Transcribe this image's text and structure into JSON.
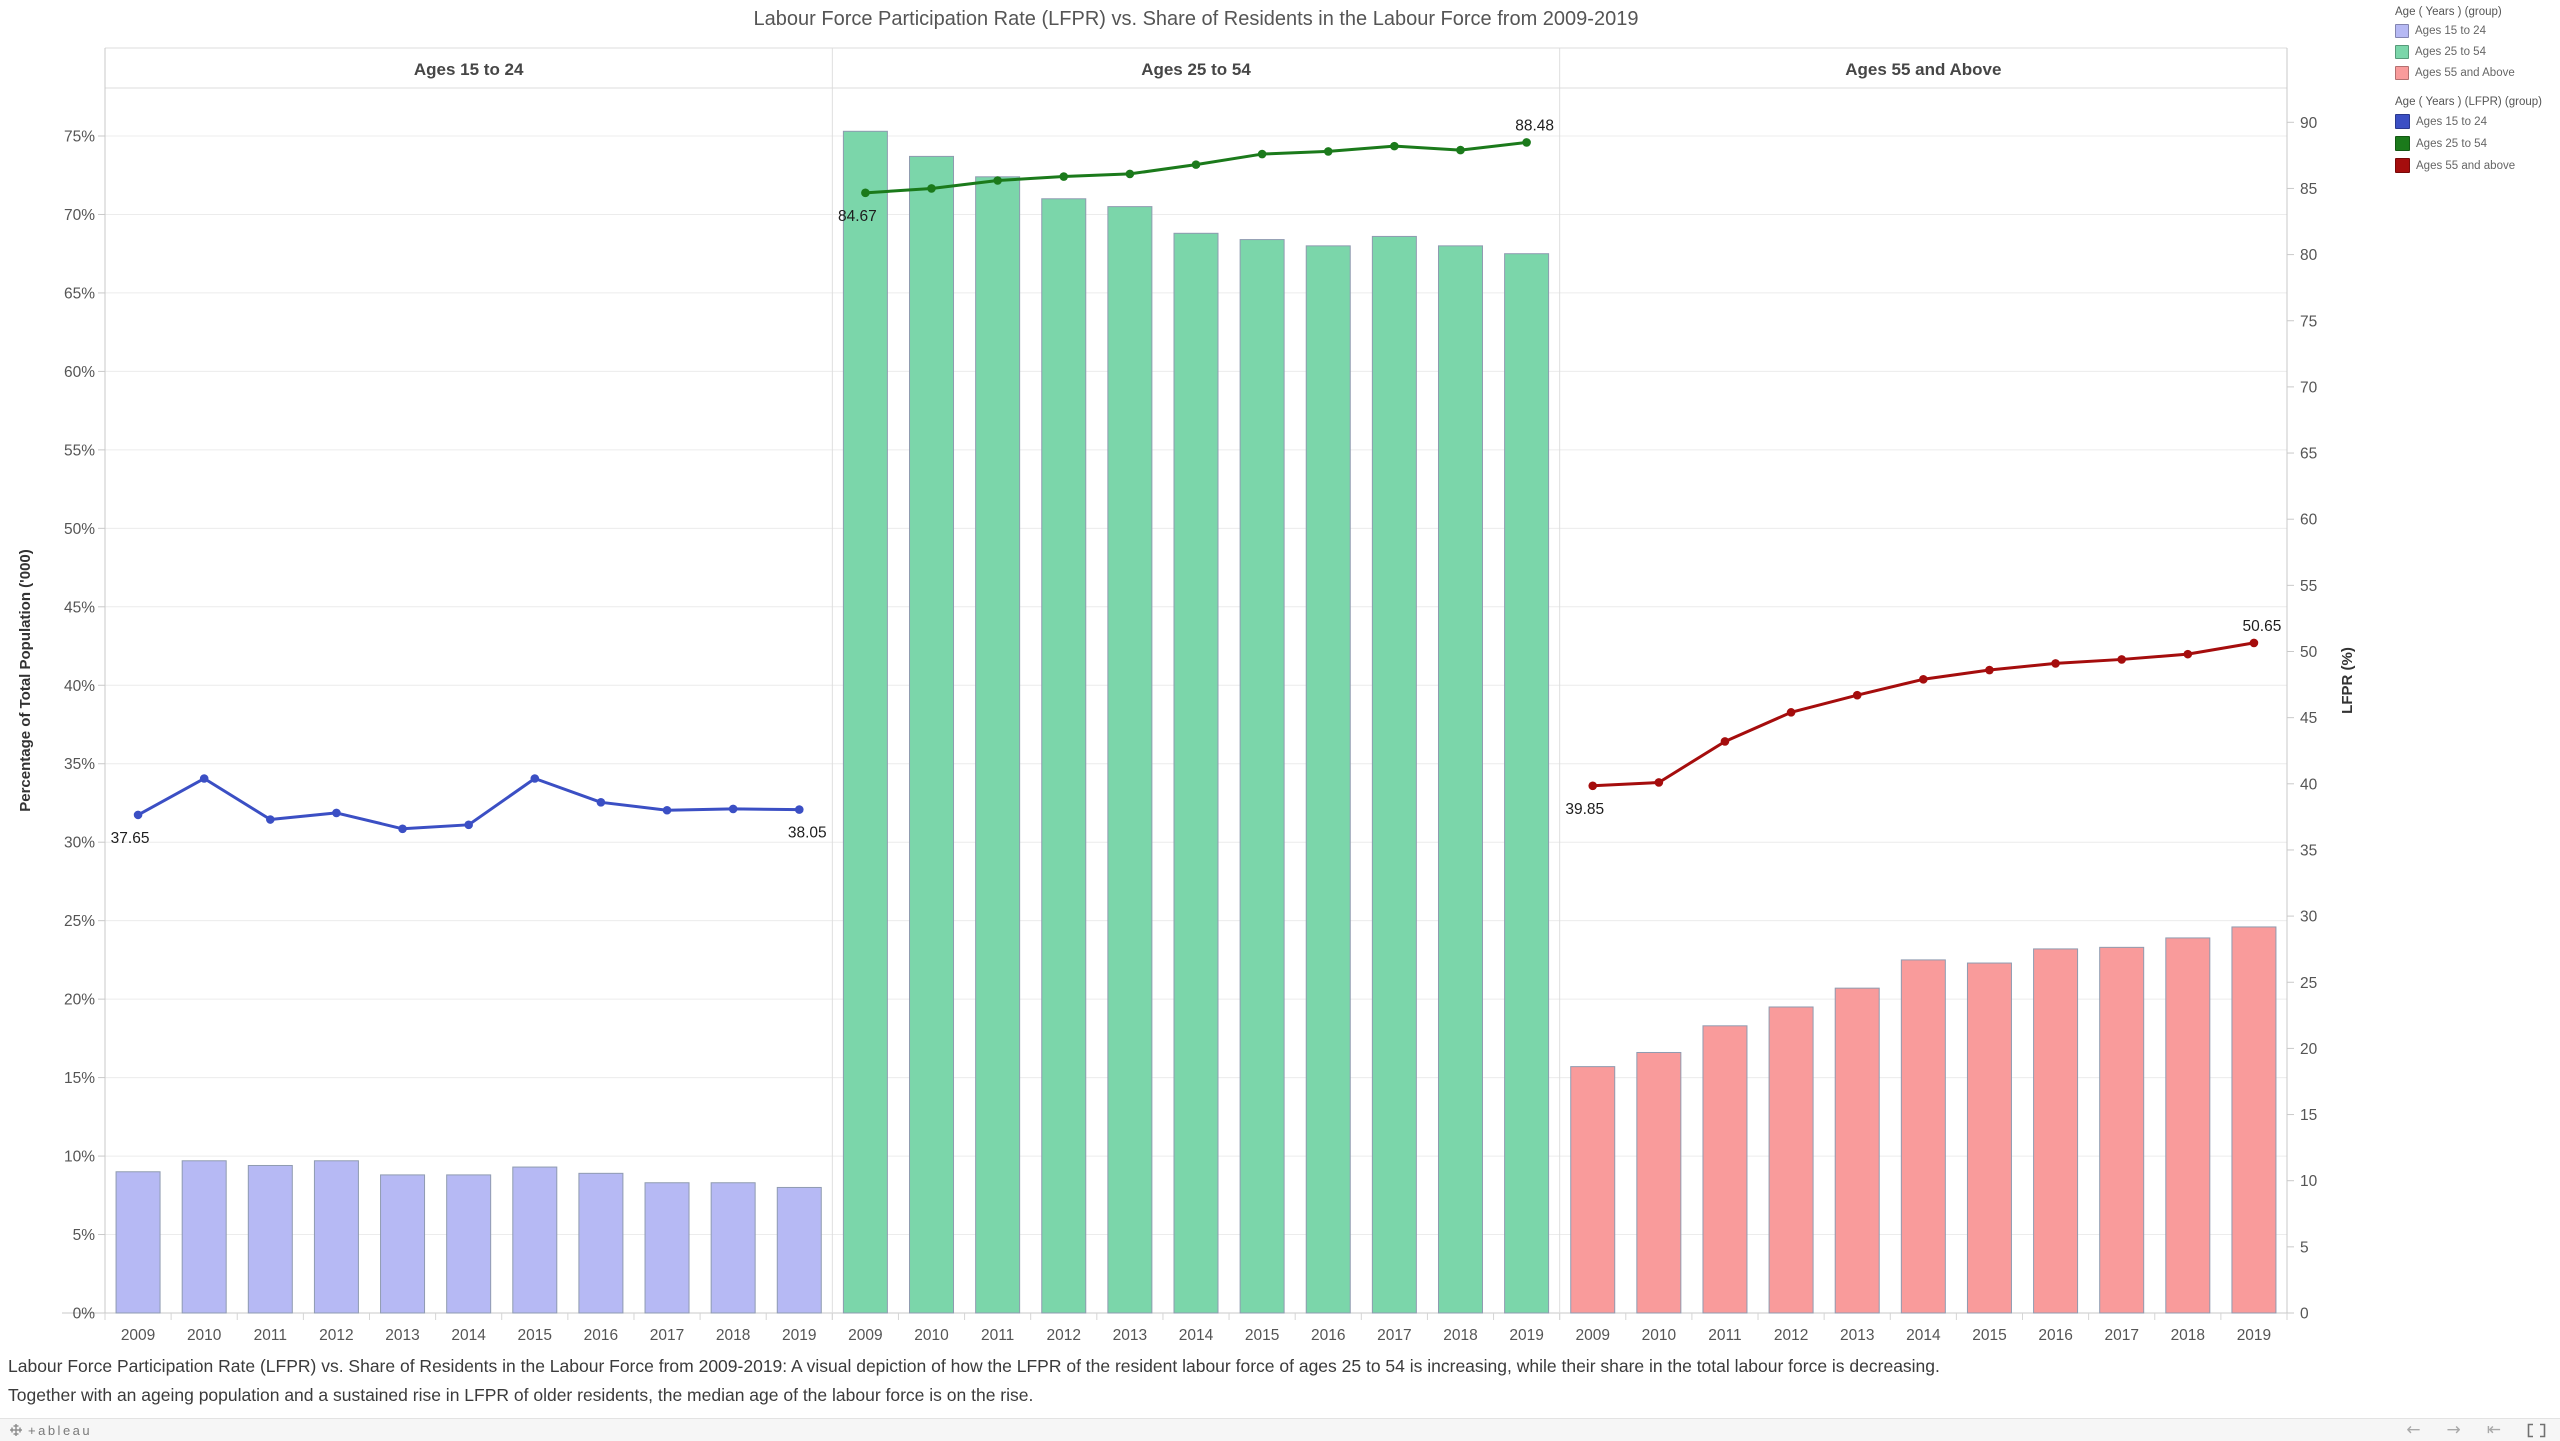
{
  "title": "Labour Force Participation Rate (LFPR) vs. Share of Residents in the Labour Force from 2009-2019",
  "legend": {
    "groups": [
      {
        "title": "Age ( Years ) (group)",
        "items": [
          {
            "label": "Ages 15 to 24",
            "color": "#b6b9f4"
          },
          {
            "label": "Ages 25 to 54",
            "color": "#7bd6aa"
          },
          {
            "label": "Ages 55 and Above",
            "color": "#f99b9b"
          }
        ]
      },
      {
        "title": "Age ( Years ) (LFPR) (group)",
        "items": [
          {
            "label": "Ages 15 to 24",
            "color": "#3b4fc4"
          },
          {
            "label": "Ages 25 to 54",
            "color": "#1b7a1b"
          },
          {
            "label": "Ages 55 and above",
            "color": "#a50d0d"
          }
        ]
      }
    ]
  },
  "chart_data": {
    "type": "bar+line dual-axis, small multiples by age group",
    "x": [
      2009,
      2010,
      2011,
      2012,
      2013,
      2014,
      2015,
      2016,
      2017,
      2018,
      2019
    ],
    "left_axis": {
      "label": "Percentage of Total Population ('000)",
      "tick_labels": [
        "0%",
        "5%",
        "10%",
        "15%",
        "20%",
        "25%",
        "30%",
        "35%",
        "40%",
        "45%",
        "50%",
        "55%",
        "60%",
        "65%",
        "70%",
        "75%"
      ],
      "tick_values": [
        0,
        5,
        10,
        15,
        20,
        25,
        30,
        35,
        40,
        45,
        50,
        55,
        60,
        65,
        70,
        75
      ],
      "range": [
        0,
        78.5
      ],
      "grid": true
    },
    "right_axis": {
      "label": "LFPR (%)",
      "tick_values": [
        0,
        5,
        10,
        15,
        20,
        25,
        30,
        35,
        40,
        45,
        50,
        55,
        60,
        65,
        70,
        75,
        80,
        85,
        90
      ],
      "range": [
        0,
        93
      ]
    },
    "panels": [
      {
        "header": "Ages 15 to 24",
        "bars": {
          "name": "Share of residents in labour force",
          "axis": "left",
          "color": "#b6b9f4",
          "values": [
            9.0,
            9.7,
            9.4,
            9.7,
            8.8,
            8.8,
            9.3,
            8.9,
            8.3,
            8.3,
            8.0
          ]
        },
        "line": {
          "name": "LFPR",
          "axis": "right",
          "color": "#3b4fc4",
          "values": [
            37.65,
            40.4,
            37.3,
            37.8,
            36.6,
            36.9,
            40.4,
            38.6,
            38.0,
            38.1,
            38.05
          ],
          "first_label": "37.65",
          "last_label": "38.05",
          "last_label_pos": "below"
        }
      },
      {
        "header": "Ages 25 to 54",
        "bars": {
          "name": "Share of residents in labour force",
          "axis": "left",
          "color": "#7bd6aa",
          "values": [
            75.3,
            73.7,
            72.4,
            71.0,
            70.5,
            68.8,
            68.4,
            68.0,
            68.6,
            68.0,
            67.5
          ]
        },
        "line": {
          "name": "LFPR",
          "axis": "right",
          "color": "#1b7a1b",
          "values": [
            84.67,
            85.0,
            85.6,
            85.9,
            86.1,
            86.8,
            87.6,
            87.8,
            88.2,
            87.9,
            88.48
          ],
          "first_label": "84.67",
          "last_label": "88.48",
          "last_label_pos": "above"
        }
      },
      {
        "header": "Ages 55 and Above",
        "bars": {
          "name": "Share of residents in labour force",
          "axis": "left",
          "color": "#f99b9b",
          "values": [
            15.7,
            16.6,
            18.3,
            19.5,
            20.7,
            22.5,
            22.3,
            23.2,
            23.3,
            23.9,
            24.6
          ]
        },
        "line": {
          "name": "LFPR",
          "axis": "right",
          "color": "#a50d0d",
          "values": [
            39.85,
            40.1,
            43.2,
            45.4,
            46.7,
            47.9,
            48.6,
            49.1,
            49.4,
            49.8,
            50.65
          ],
          "first_label": "39.85",
          "last_label": "50.65",
          "last_label_pos": "above"
        }
      }
    ]
  },
  "caption": {
    "line1": "Labour Force Participation Rate (LFPR) vs. Share of Residents in the Labour Force from 2009-2019: A visual depiction of how the LFPR of the resident labour force of ages 25 to 54 is increasing, while their share in the total labour force is decreasing.",
    "line2": "Together with an ageing population and a sustained rise in LFPR of older residents, the median age of the labour force is on the rise."
  },
  "footer": {
    "logo_text": "+ableau",
    "nav": {
      "undo": "←",
      "redo": "→",
      "revert": "⇤"
    }
  }
}
